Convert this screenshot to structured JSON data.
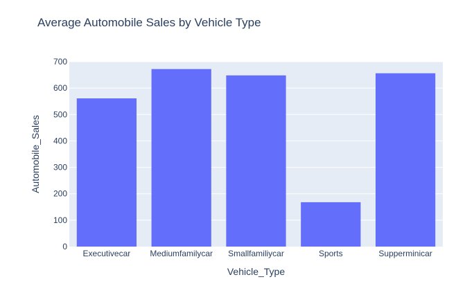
{
  "chart_data": {
    "type": "bar",
    "title": "Average Automobile Sales by Vehicle Type",
    "xlabel": "Vehicle_Type",
    "ylabel": "Automobile_Sales",
    "categories": [
      "Executivecar",
      "Mediumfamilycar",
      "Smallfamiliycar",
      "Sports",
      "Supperminicar"
    ],
    "values": [
      561,
      672,
      648,
      168,
      656
    ],
    "ylim": [
      0,
      700
    ],
    "yticks": [
      0,
      100,
      200,
      300,
      400,
      500,
      600,
      700
    ],
    "grid": true,
    "colors": {
      "bar": "#636efa",
      "plot_bg": "#e5ecf6",
      "grid": "#ffffff",
      "text": "#2a3f5f"
    }
  }
}
